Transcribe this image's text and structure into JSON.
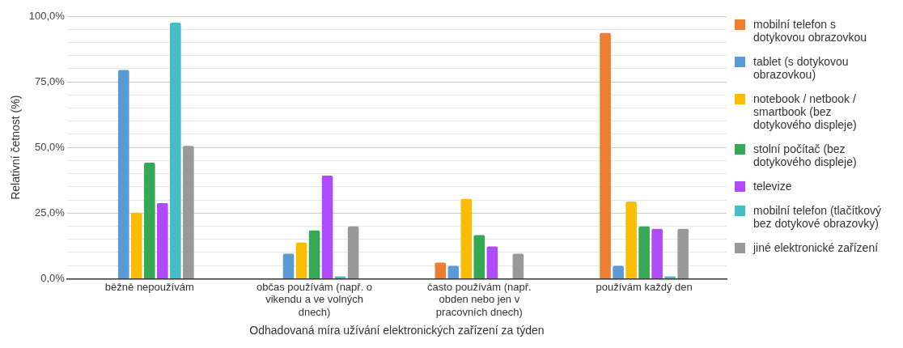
{
  "chart_data": {
    "type": "bar",
    "xlabel": "Odhadovaná míra užívání elektronických zařízení za týden",
    "ylabel": "Relativní četnost (%)",
    "categories": [
      "běžně nepoužívám",
      "občas používám (např. o vikendu a ve volných dnech)",
      "často používám (např. obden nebo jen v pracovních dnech)",
      "používám každý den"
    ],
    "series": [
      {
        "name": "mobilní telefon s dotykovou obrazovkou",
        "color": "#ed7d31",
        "values": [
          0,
          0,
          6.1,
          93.6
        ]
      },
      {
        "name": "tablet (s dotykovou obrazovkou)",
        "color": "#5b9bd5",
        "values": [
          79.5,
          9.5,
          4.9,
          4.9
        ]
      },
      {
        "name": "notebook / netbook / smartbook (bez dotykového displeje)",
        "color": "#fbbc04",
        "values": [
          25.2,
          13.8,
          30.4,
          29.4
        ]
      },
      {
        "name": "stolní počítač (bez dotykového displeje)",
        "color": "#34a853",
        "values": [
          44.2,
          18.4,
          16.6,
          19.9
        ]
      },
      {
        "name": "televize",
        "color": "#b04bfc",
        "values": [
          28.8,
          39.3,
          12.3,
          19.0
        ]
      },
      {
        "name": "mobilní telefon (tlačítkový bez dotykové obrazovky)",
        "color": "#46bdc6",
        "values": [
          97.5,
          0.9,
          0,
          0.9
        ]
      },
      {
        "name": "jiné elektronické zařízení",
        "color": "#999999",
        "values": [
          50.6,
          19.9,
          9.5,
          19.0
        ]
      }
    ],
    "ylim": [
      0,
      100
    ],
    "yticks": [
      {
        "value": 0,
        "label": "0,0%"
      },
      {
        "value": 5,
        "label": null
      },
      {
        "value": 10,
        "label": null
      },
      {
        "value": 15,
        "label": null
      },
      {
        "value": 20,
        "label": null
      },
      {
        "value": 25,
        "label": "25,0%"
      },
      {
        "value": 30,
        "label": null
      },
      {
        "value": 35,
        "label": null
      },
      {
        "value": 40,
        "label": null
      },
      {
        "value": 45,
        "label": null
      },
      {
        "value": 50,
        "label": "50,0%"
      },
      {
        "value": 55,
        "label": null
      },
      {
        "value": 60,
        "label": null
      },
      {
        "value": 65,
        "label": null
      },
      {
        "value": 70,
        "label": null
      },
      {
        "value": 75,
        "label": "75,0%"
      },
      {
        "value": 80,
        "label": null
      },
      {
        "value": 85,
        "label": null
      },
      {
        "value": 90,
        "label": null
      },
      {
        "value": 95,
        "label": null
      },
      {
        "value": 100,
        "label": "100,0%"
      }
    ],
    "grid": "y",
    "legend": "right"
  }
}
